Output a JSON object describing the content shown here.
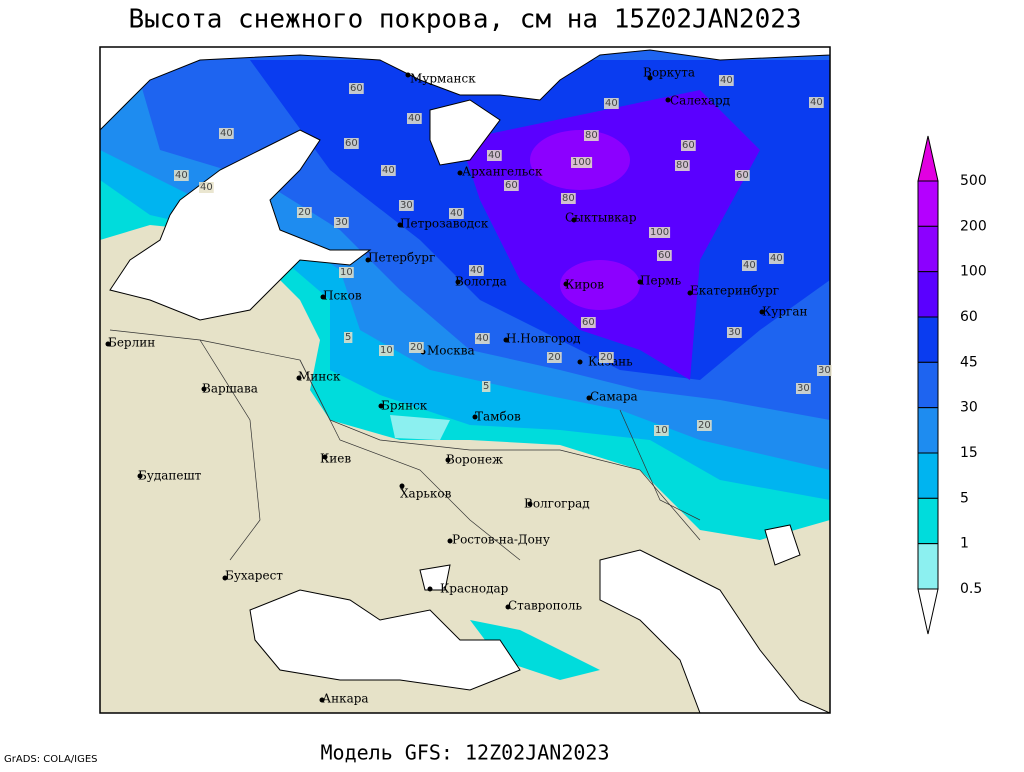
{
  "title": "Высота снежного покрова, см на 15Z02JAN2023",
  "footer": "Модель GFS: 12Z02JAN2023",
  "credit": "GrADS: COLA/IGES",
  "colorbar": {
    "levels": [
      500,
      200,
      100,
      60,
      45,
      30,
      15,
      5,
      1,
      0.5
    ],
    "colors": [
      "#e100e1",
      "#b400ff",
      "#8c00ff",
      "#5a00ff",
      "#0a3cf0",
      "#1e64f0",
      "#1e8cf0",
      "#00b4f0",
      "#00dcdc",
      "#8cf0f0",
      "#ffffff"
    ]
  },
  "cities": [
    "Мурманск",
    "Воркута",
    "Салехард",
    "Архангельск",
    "Сыктывкар",
    "Петрозаводск",
    "Петербург",
    "Вологда",
    "Киров",
    "Пермь",
    "Екатеринбург",
    "Курган",
    "Псков",
    "Н.Новгород",
    "Москва",
    "Казань",
    "Минск",
    "Варшава",
    "Берлин",
    "Брянск",
    "Тамбов",
    "Самара",
    "Киев",
    "Воронеж",
    "Харьков",
    "Волгоград",
    "Будапешт",
    "Ростов-на-Дону",
    "Бухарест",
    "Краснодар",
    "Ставрополь",
    "Анкара"
  ],
  "contour_labels": [
    60,
    40,
    40,
    60,
    40,
    40,
    40,
    40,
    20,
    30,
    40,
    30,
    10,
    40,
    40,
    60,
    80,
    100,
    80,
    60,
    60,
    40,
    80,
    100,
    60,
    40,
    40,
    30,
    30,
    5,
    10,
    20,
    40,
    60,
    20,
    20,
    5,
    10,
    30,
    20,
    40
  ]
}
